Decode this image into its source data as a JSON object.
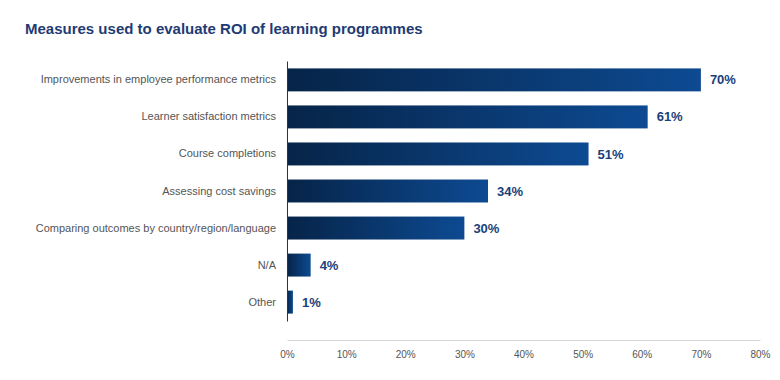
{
  "chart_data": {
    "type": "bar",
    "orientation": "horizontal",
    "title": "Measures used to evaluate ROI of learning programmes",
    "categories": [
      "Improvements in employee performance metrics",
      "Learner satisfaction metrics",
      "Course completions",
      "Assessing cost savings",
      "Comparing outcomes by country/region/language",
      "N/A",
      "Other"
    ],
    "values": [
      70,
      61,
      51,
      34,
      30,
      4,
      1
    ],
    "value_labels": [
      "70%",
      "61%",
      "51%",
      "34%",
      "30%",
      "4%",
      "1%"
    ],
    "color": "#0d4a92",
    "xlim": [
      0,
      80
    ],
    "xticks": [
      {
        "value": 0,
        "label": "0%"
      },
      {
        "value": 10,
        "label": "10%"
      },
      {
        "value": 20,
        "label": "20%"
      },
      {
        "value": 30,
        "label": "30%"
      },
      {
        "value": 40,
        "label": "40%"
      },
      {
        "value": 50,
        "label": "50%"
      },
      {
        "value": 60,
        "label": "60%"
      },
      {
        "value": 70,
        "label": "70%"
      },
      {
        "value": 80,
        "label": "80%"
      }
    ],
    "data_labels": true,
    "grid": false
  }
}
